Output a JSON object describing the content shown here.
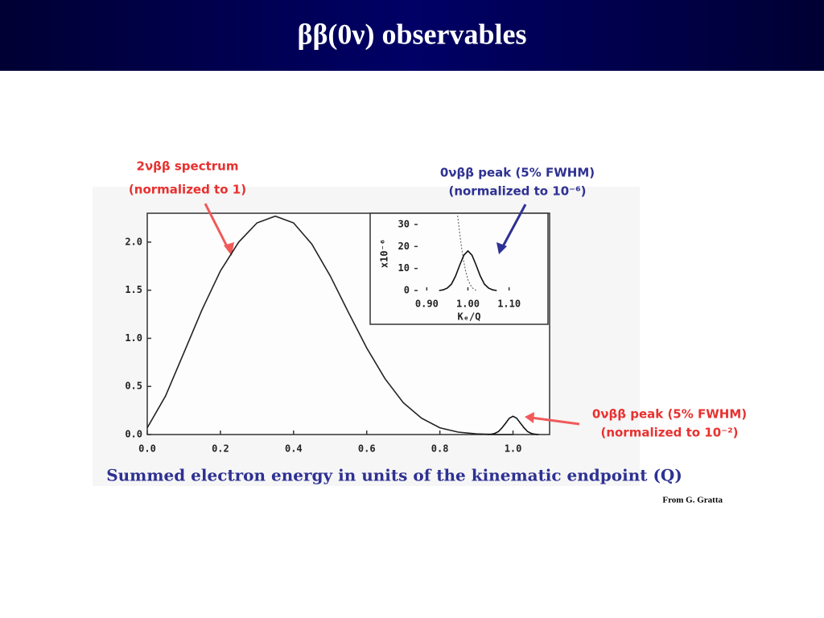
{
  "title": "ββ(0ν) observables",
  "credit": "From G. Gratta",
  "chart_data": [
    {
      "type": "line",
      "xlabel": "Summed electron energy in units of the kinematic endpoint (Q)",
      "xlim": [
        0,
        1.1
      ],
      "ylim": [
        0,
        2.3
      ],
      "xticks": [
        {
          "value": 0,
          "label": "0.0"
        },
        0.2,
        0.4,
        0.6,
        0.8,
        {
          "value": 1,
          "label": "1.0"
        }
      ],
      "yticks": [
        {
          "value": 0,
          "label": "0.0"
        },
        0.5,
        {
          "value": 1,
          "label": "1.0"
        },
        1.5,
        {
          "value": 2,
          "label": "2.0"
        }
      ],
      "series": [
        {
          "name": "2νββ spectrum",
          "note": "(normalized to 1)",
          "color": "#222222",
          "style": "solid",
          "x": [
            0,
            0.05,
            0.1,
            0.15,
            0.2,
            0.25,
            0.3,
            0.35,
            0.4,
            0.45,
            0.5,
            0.55,
            0.6,
            0.65,
            0.7,
            0.75,
            0.8,
            0.85,
            0.9,
            0.95,
            1.0
          ],
          "values": [
            0.07,
            0.4,
            0.85,
            1.3,
            1.7,
            2.0,
            2.2,
            2.27,
            2.2,
            1.98,
            1.65,
            1.27,
            0.9,
            0.58,
            0.33,
            0.17,
            0.07,
            0.025,
            0.007,
            0.001,
            0
          ]
        },
        {
          "name": "0νββ peak (5% FWHM)",
          "note": "(normalized to 10⁻²)",
          "color": "#111111",
          "style": "solid",
          "x": [
            0.93,
            0.94,
            0.95,
            0.96,
            0.97,
            0.98,
            0.99,
            1.0,
            1.01,
            1.02,
            1.03,
            1.04,
            1.05,
            1.06,
            1.07
          ],
          "values": [
            0,
            0.003,
            0.012,
            0.03,
            0.07,
            0.12,
            0.17,
            0.19,
            0.17,
            0.12,
            0.07,
            0.03,
            0.012,
            0.003,
            0
          ]
        }
      ]
    },
    {
      "type": "line",
      "xlabel": "Kₑ/Q",
      "ylabel": "x10⁻⁶",
      "xlim": [
        0.87,
        1.13
      ],
      "ylim": [
        0,
        34
      ],
      "xticks": [
        {
          "value": 0.9,
          "label": "0.90"
        },
        {
          "value": 1,
          "label": "1.00"
        },
        {
          "value": 1.1,
          "label": "1.10"
        }
      ],
      "yticks": [
        0,
        10,
        20,
        30
      ],
      "series": [
        {
          "color": "#555555",
          "style": "dashed",
          "x": [
            0.975,
            0.98,
            0.985,
            0.99,
            0.995,
            1.0,
            1.005,
            1.01,
            1.015,
            1.02
          ],
          "values": [
            34,
            26,
            19,
            13,
            8.5,
            5,
            2.8,
            1.3,
            0.5,
            0.1
          ]
        },
        {
          "name": "0νββ peak (5% FWHM)",
          "note": "(normalized to 10⁻⁶)",
          "color": "#111111",
          "style": "solid",
          "x": [
            0.93,
            0.94,
            0.95,
            0.96,
            0.97,
            0.98,
            0.99,
            1.0,
            1.01,
            1.02,
            1.03,
            1.04,
            1.05,
            1.06,
            1.07
          ],
          "values": [
            0,
            0.3,
            1.1,
            2.9,
            6.6,
            11.5,
            16,
            18,
            16,
            11.5,
            6.6,
            2.9,
            1.1,
            0.3,
            0
          ]
        }
      ]
    }
  ]
}
